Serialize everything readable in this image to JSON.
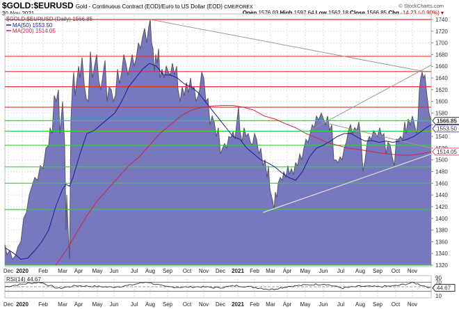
{
  "header": {
    "symbol": "$GOLD:$EURUSD",
    "description": "Gold - Continuous Contract (EOD)/Euro to US Dollar (EOD)",
    "exchange": "CME/FOREX",
    "date": "30-Nov-2021",
    "brand": "© StockCharts.com",
    "open_label": "Open",
    "open": "1576.03",
    "high_label": "High",
    "high": "1597.64",
    "low_label": "Low",
    "low": "1562.18",
    "close_label": "Close",
    "close": "1566.85",
    "chg_label": "Chg",
    "chg": "-14.23 (-0.90%)"
  },
  "legend": {
    "price": "$GOLD:$EURUSD (Daily) 1566.85",
    "ma50": "MA(50) 1553.50",
    "ma200": "MA(200) 1514.05",
    "rsi": "RSI(14) 44.67"
  },
  "price_axis": {
    "ticks": [
      "1740",
      "1720",
      "1700",
      "1680",
      "1660",
      "1640",
      "1620",
      "1600",
      "1580",
      "1560",
      "1540",
      "1520",
      "1500",
      "1480",
      "1460",
      "1440",
      "1420",
      "1400",
      "1380",
      "1360",
      "1340",
      "1320"
    ],
    "last_price_tag": "1566.85",
    "ma50_tag": "1553.50",
    "ma200_tag": "1514.05"
  },
  "rsi_axis": {
    "ticks": [
      "90",
      "70",
      "10"
    ],
    "last_tag": "44.67"
  },
  "x_axis": {
    "labels": [
      "Dec",
      "2020",
      "Feb",
      "Mar",
      "Apr",
      "May",
      "Jun",
      "Jul",
      "Aug",
      "Sep",
      "Oct",
      "Nov",
      "Dec",
      "2021",
      "Feb",
      "Mar",
      "Apr",
      "May",
      "Jun",
      "Jul",
      "Aug",
      "Sep",
      "Oct",
      "Nov"
    ]
  },
  "colors": {
    "area_fill": "#7878bf",
    "price_line": "#555566",
    "ma50": "#1a1a9c",
    "ma200": "#d0214a",
    "resistance": "#e03030",
    "support": "#3ec93e",
    "trendline": "#999999",
    "support_trendline": "#dddddd"
  },
  "chart_data": [
    {
      "type": "area",
      "title": "$GOLD:$EURUSD Gold - Continuous Contract (EOD)/Euro to US Dollar (EOD) CME/FOREX",
      "subtitle": "30-Nov-2021",
      "xlabel": "",
      "ylabel": "",
      "ylim": [
        1320,
        1740
      ],
      "grid": true,
      "legend_position": "top-left",
      "x": [
        "Dec 2019",
        "Jan 2020",
        "Feb 2020",
        "Mar 2020",
        "Apr 2020",
        "May 2020",
        "Jun 2020",
        "Jul 2020",
        "Aug 2020",
        "Sep 2020",
        "Oct 2020",
        "Nov 2020",
        "Dec 2020",
        "Jan 2021",
        "Feb 2021",
        "Mar 2021",
        "Apr 2021",
        "May 2021",
        "Jun 2021",
        "Jul 2021",
        "Aug 2021",
        "Sep 2021",
        "Oct 2021",
        "Nov 2021",
        "30-Nov 2021"
      ],
      "series": [
        {
          "name": "$GOLD:$EURUSD (Daily)",
          "values": [
            1340,
            1345,
            1420,
            1360,
            1545,
            1560,
            1565,
            1620,
            1730,
            1610,
            1600,
            1560,
            1535,
            1560,
            1530,
            1420,
            1460,
            1535,
            1560,
            1530,
            1520,
            1535,
            1545,
            1640,
            1566.85
          ]
        },
        {
          "name": "MA(50)",
          "values": [
            1350,
            1335,
            1360,
            1395,
            1450,
            1520,
            1545,
            1575,
            1640,
            1650,
            1625,
            1595,
            1560,
            1535,
            1520,
            1500,
            1470,
            1475,
            1520,
            1540,
            1545,
            1530,
            1535,
            1540,
            1553.5
          ]
        },
        {
          "name": "MA(200)",
          "values": [
            null,
            null,
            null,
            1320,
            1345,
            1380,
            1420,
            1460,
            1510,
            1555,
            1580,
            1590,
            1593,
            1585,
            1575,
            1565,
            1550,
            1540,
            1535,
            1530,
            1520,
            1515,
            1510,
            1512,
            1514.05
          ]
        }
      ],
      "horizontal_lines": {
        "resistance": [
          1740,
          1677,
          1651,
          1625,
          1590
        ],
        "support": [
          1567,
          1549,
          1525,
          1488,
          1460,
          1415,
          1320
        ]
      },
      "trendlines": [
        {
          "from": [
            "Aug 2020",
            1740
          ],
          "to": [
            "Nov 2021",
            1651
          ]
        },
        {
          "from": [
            "May 2021",
            1550
          ],
          "to": [
            "Nov 2021",
            1662
          ]
        },
        {
          "from": [
            "Jun 2021",
            1565
          ],
          "to": [
            "Nov 2021",
            1520
          ]
        },
        {
          "from": [
            "Feb 2021",
            1410
          ],
          "to": [
            "Nov 2021",
            1510
          ]
        }
      ],
      "annotations": [
        "Last 1566.85",
        "MA(50) 1553.50",
        "MA(200) 1514.05"
      ]
    },
    {
      "type": "line",
      "title": "RSI(14) 44.67",
      "ylim": [
        0,
        100
      ],
      "y_ticks": [
        90,
        70,
        10
      ],
      "reference_lines": [
        70,
        50,
        30
      ],
      "x": [
        "Dec 2019",
        "Jan 2020",
        "Feb 2020",
        "Mar 2020",
        "Apr 2020",
        "May 2020",
        "Jun 2020",
        "Jul 2020",
        "Aug 2020",
        "Sep 2020",
        "Oct 2020",
        "Nov 2020",
        "Dec 2020",
        "Jan 2021",
        "Feb 2021",
        "Mar 2021",
        "Apr 2021",
        "May 2021",
        "Jun 2021",
        "Jul 2021",
        "Aug 2021",
        "Sep 2021",
        "Oct 2021",
        "Nov 2021",
        "30-Nov 2021"
      ],
      "series": [
        {
          "name": "RSI(14)",
          "values": [
            50,
            62,
            70,
            42,
            55,
            52,
            48,
            56,
            72,
            50,
            48,
            50,
            45,
            55,
            48,
            38,
            52,
            58,
            63,
            44,
            52,
            50,
            54,
            68,
            44.67
          ]
        }
      ]
    }
  ]
}
